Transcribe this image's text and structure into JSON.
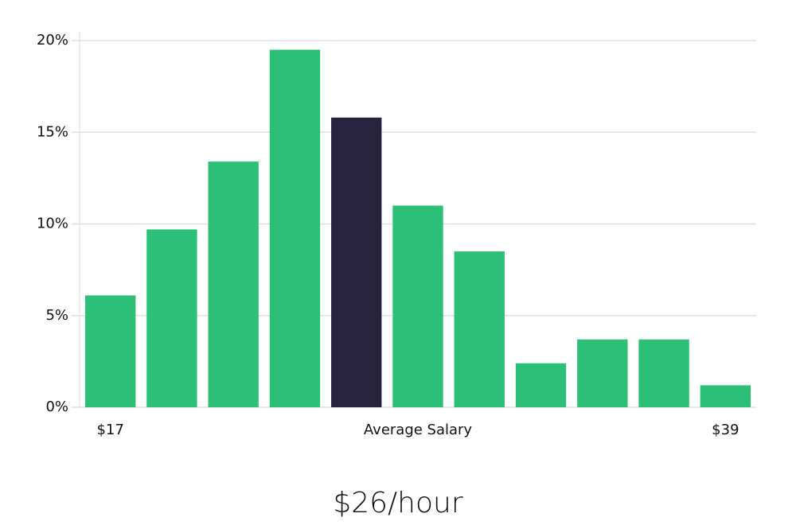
{
  "chart_data": {
    "type": "bar",
    "subtitle": "$26/hour",
    "categories": [
      "$17",
      null,
      null,
      null,
      null,
      "Average Salary",
      null,
      null,
      null,
      null,
      "$39"
    ],
    "values": [
      6.1,
      9.7,
      13.4,
      19.5,
      15.8,
      11.0,
      8.5,
      2.4,
      3.7,
      3.7,
      1.2
    ],
    "colors": [
      "#2bbf77",
      "#2bbf77",
      "#2bbf77",
      "#2bbf77",
      "#27233f",
      "#2bbf77",
      "#2bbf77",
      "#2bbf77",
      "#2bbf77",
      "#2bbf77",
      "#2bbf77"
    ],
    "ylim": [
      0,
      20
    ],
    "yticks": [
      {
        "value": 0,
        "label": "0%"
      },
      {
        "value": 5,
        "label": "5%"
      },
      {
        "value": 10,
        "label": "10%"
      },
      {
        "value": 15,
        "label": "15%"
      },
      {
        "value": 20,
        "label": "20%"
      }
    ],
    "grid": true
  }
}
